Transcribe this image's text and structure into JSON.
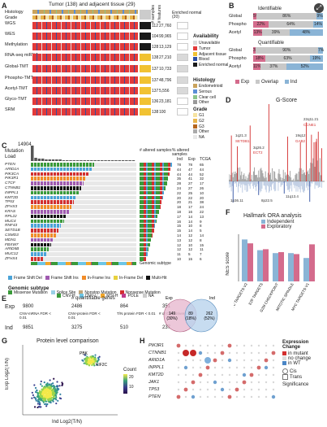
{
  "panelA": {
    "label": "A",
    "title": "Tumor (138) and adjacent tissue (29)",
    "row_label_histology": "Histology",
    "row_label_grade": "Grade",
    "col_samples": "# samples",
    "col_features": "# features",
    "enriched_normal": "Enriched normal (20)",
    "rows": [
      {
        "name": "WGS",
        "samples": "112",
        "features": "27,760"
      },
      {
        "name": "WES",
        "samples": "104",
        "features": "99,965"
      },
      {
        "name": "Methylation",
        "samples": "128",
        "features": "13,129"
      },
      {
        "name": "RNA-seq miRNA-seq",
        "samples": "138",
        "features": "27,210"
      },
      {
        "name": "Global-TMT",
        "samples": "137",
        "features": "10,733"
      },
      {
        "name": "Phospho-TMT",
        "samples": "137",
        "features": "48,796"
      },
      {
        "name": "Acetyl-TMT",
        "samples": "137",
        "features": "5,556"
      },
      {
        "name": "Glyco-TMT",
        "samples": "136",
        "features": "23,181"
      },
      {
        "name": "SRM",
        "samples": "138",
        "features": "100"
      }
    ],
    "availability_title": "Availability",
    "availability": [
      {
        "label": "Unavailable",
        "color": "#dddddd"
      },
      {
        "label": "Tumor",
        "color": "#e23a3a"
      },
      {
        "label": "Adjacent tissue",
        "color": "#f1c232"
      },
      {
        "label": "Blood",
        "color": "#2e4fa3"
      },
      {
        "label": "Enriched normal",
        "color": "#1a1a1a"
      }
    ],
    "histology_title": "Histology",
    "histology": [
      {
        "label": "Endometrioid",
        "color": "#c9a35c"
      },
      {
        "label": "Serous",
        "color": "#5b8fd6"
      },
      {
        "label": "Clear cell",
        "color": "#8bc48b"
      },
      {
        "label": "Other",
        "color": "#999999"
      }
    ],
    "grade_title": "Grade",
    "grade": [
      {
        "label": "G1",
        "color": "#f6e3a0"
      },
      {
        "label": "G2",
        "color": "#e8b64d"
      },
      {
        "label": "G3",
        "color": "#b5651d"
      },
      {
        "label": "Other",
        "color": "#aaaaaa"
      },
      {
        "label": "NA",
        "color": "#e8e8e8"
      }
    ]
  },
  "panelB": {
    "label": "B",
    "identifiable_title": "Identifiable",
    "quantifiable_title": "Quantifiable",
    "rows_ident": [
      {
        "name": "Global",
        "values": [
          "5%",
          "86%",
          "9%"
        ]
      },
      {
        "name": "Phospho",
        "values": [
          "22%",
          "64%",
          "14%"
        ]
      },
      {
        "name": "Acetyl",
        "values": [
          "13%",
          "39%",
          "48%"
        ]
      }
    ],
    "rows_quant": [
      {
        "name": "Global",
        "values": [
          "3%",
          "90%",
          "7%"
        ]
      },
      {
        "name": "Phospho",
        "values": [
          "18%",
          "63%",
          "19%"
        ]
      },
      {
        "name": "Acetyl",
        "values": [
          "11%",
          "37%",
          "52%"
        ]
      }
    ],
    "legend": [
      "Exp",
      "Overlap",
      "Ind"
    ]
  },
  "panelC": {
    "label": "C",
    "mutation_load_title": "Mutation Load",
    "mutation_load_max": "14904",
    "altered_samples": "# altered samples",
    "pct_altered": "% altered samples",
    "col_headers": [
      "Ind",
      "Exp",
      "TCGA"
    ],
    "genes": [
      "PTEN",
      "ARID1A",
      "PIK3CA",
      "PIK3R1",
      "CTCF",
      "CTNNB1",
      "INPPL1",
      "KMT2D",
      "TP53",
      "ZFHX3",
      "KRAS",
      "RPL22",
      "MUC4",
      "RNF43",
      "SETD1B",
      "CSMD3",
      "MDN1",
      "FBXW7",
      "ARID5B",
      "MUC12",
      "ZFHX4"
    ],
    "pct": [
      [
        "78",
        "78",
        "65"
      ],
      [
        "44",
        "47",
        "44"
      ],
      [
        "44",
        "44",
        "52"
      ],
      [
        "35",
        "41",
        "32"
      ],
      [
        "28",
        "27",
        "17"
      ],
      [
        "24",
        "27",
        "26"
      ],
      [
        "22",
        "25",
        "10"
      ],
      [
        "20",
        "22",
        "20"
      ],
      [
        "20",
        "21",
        "38"
      ],
      [
        "18",
        "17",
        "24"
      ],
      [
        "18",
        "16",
        "22"
      ],
      [
        "17",
        "14",
        "13"
      ],
      [
        "16",
        "14",
        "9"
      ],
      [
        "15",
        "10",
        "8"
      ],
      [
        "15",
        "14",
        "5"
      ],
      [
        "14",
        "12",
        "14"
      ],
      [
        "13",
        "12",
        "8"
      ],
      [
        "12",
        "10",
        "15"
      ],
      [
        "12",
        "12",
        "11"
      ],
      [
        "11",
        "5",
        "7"
      ],
      [
        "10",
        "15",
        "6"
      ]
    ],
    "genomic_subtype": "Genomic subtype",
    "mutation_legend": [
      {
        "label": "Frame Shift Del",
        "color": "#4aa3d8"
      },
      {
        "label": "Frame Shift Ins",
        "color": "#a05ab0"
      },
      {
        "label": "In-Frame Ins",
        "color": "#f28c28"
      },
      {
        "label": "In-Frame Del",
        "color": "#e8d13c"
      },
      {
        "label": "Multi-Hit",
        "color": "#111111"
      },
      {
        "label": "Missense Mutation",
        "color": "#3a9a3a"
      },
      {
        "label": "Splice Site",
        "color": "#9ad0e6"
      },
      {
        "label": "Nonstop Mutation",
        "color": "#bfa57a"
      },
      {
        "label": "Nonsense Mutation",
        "color": "#d32f2f"
      }
    ],
    "subtype_title": "Genomic subtype",
    "subtype_legend": [
      {
        "label": "CNV-H",
        "color": "#3a9a3a"
      },
      {
        "label": "CNV-L",
        "color": "#6ec6e6"
      },
      {
        "label": "MSI-H",
        "color": "#f2a62a"
      },
      {
        "label": "POLE",
        "color": "#c03b8a"
      },
      {
        "label": "NA",
        "color": "#cccccc"
      }
    ]
  },
  "panelD": {
    "label": "D",
    "title": "G-Score",
    "annotations": [
      "1q21.3",
      "SETDB1",
      "3q26.2",
      "ECT2",
      "1p36.11",
      "8p22.5",
      "22q11.21",
      "CCNE1",
      "19q12",
      "GAB2",
      "11q13.4"
    ]
  },
  "panelE": {
    "label": "E",
    "title": "# quantifiable genes",
    "exp_label": "Exp",
    "ind_label": "Ind",
    "exp_values": [
      "9800",
      "2486",
      "864",
      "351"
    ],
    "ind_values": [
      "9851",
      "3275",
      "510",
      "237"
    ],
    "steps": [
      "CNV-mRNA FDR < 0.01",
      "CNV-protein FDR < 0.01",
      "T/N protein FDR < 0.01",
      "# of CNV drivers"
    ],
    "venn_exp": "149\n(30%)",
    "venn_overlap": "89\n(18%)",
    "venn_ind": "262\n(52%)",
    "venn_exp_label": "Exp",
    "venn_ind_label": "Ind"
  },
  "panelF": {
    "label": "F",
    "title": "Hallmark ORA analysis",
    "legend": [
      "Independent",
      "Exploratory"
    ],
    "ylabel": "NES score",
    "categories": [
      "MYC TARGETS V2",
      "E2F TARGETS",
      "G2M CHECKPOINT",
      "MITOTIC SPINDLE",
      "MYC TARGETS V1"
    ]
  },
  "panelG": {
    "label": "G",
    "title": "Protein level comparison",
    "xlabel": "Ind Log2(T/N)",
    "ylabel": "Exp Log2(T/N)",
    "colorbar_title": "Count",
    "colorbar_ticks": [
      "20",
      "10"
    ],
    "annotations": [
      "PBK",
      "KIF2C"
    ]
  },
  "panelH": {
    "label": "H",
    "genes": [
      "PIK3R1",
      "CTNNB1",
      "ARID1A",
      "INPPL1",
      "KMT2D",
      "JAK1",
      "TP53",
      "PTEN"
    ],
    "legend_title": "Expression Change",
    "legend_items": [
      "in mutant",
      "no change",
      "in WT"
    ],
    "cis_trans": [
      "Cis",
      "Trans"
    ],
    "significance": "Significance"
  },
  "colors": {
    "tumor": "#e23a3a",
    "exp": "#d46b8c",
    "ind": "#8ab4d6",
    "overlap": "#c8c8c8"
  }
}
